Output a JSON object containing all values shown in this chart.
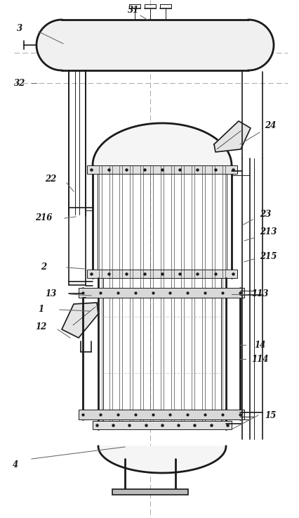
{
  "bg_color": "#ffffff",
  "line_color": "#1a1a1a",
  "dash_color": "#aaaaaa",
  "label_color": "#1a1a1a",
  "figsize": [
    4.27,
    7.36
  ],
  "dpi": 100
}
